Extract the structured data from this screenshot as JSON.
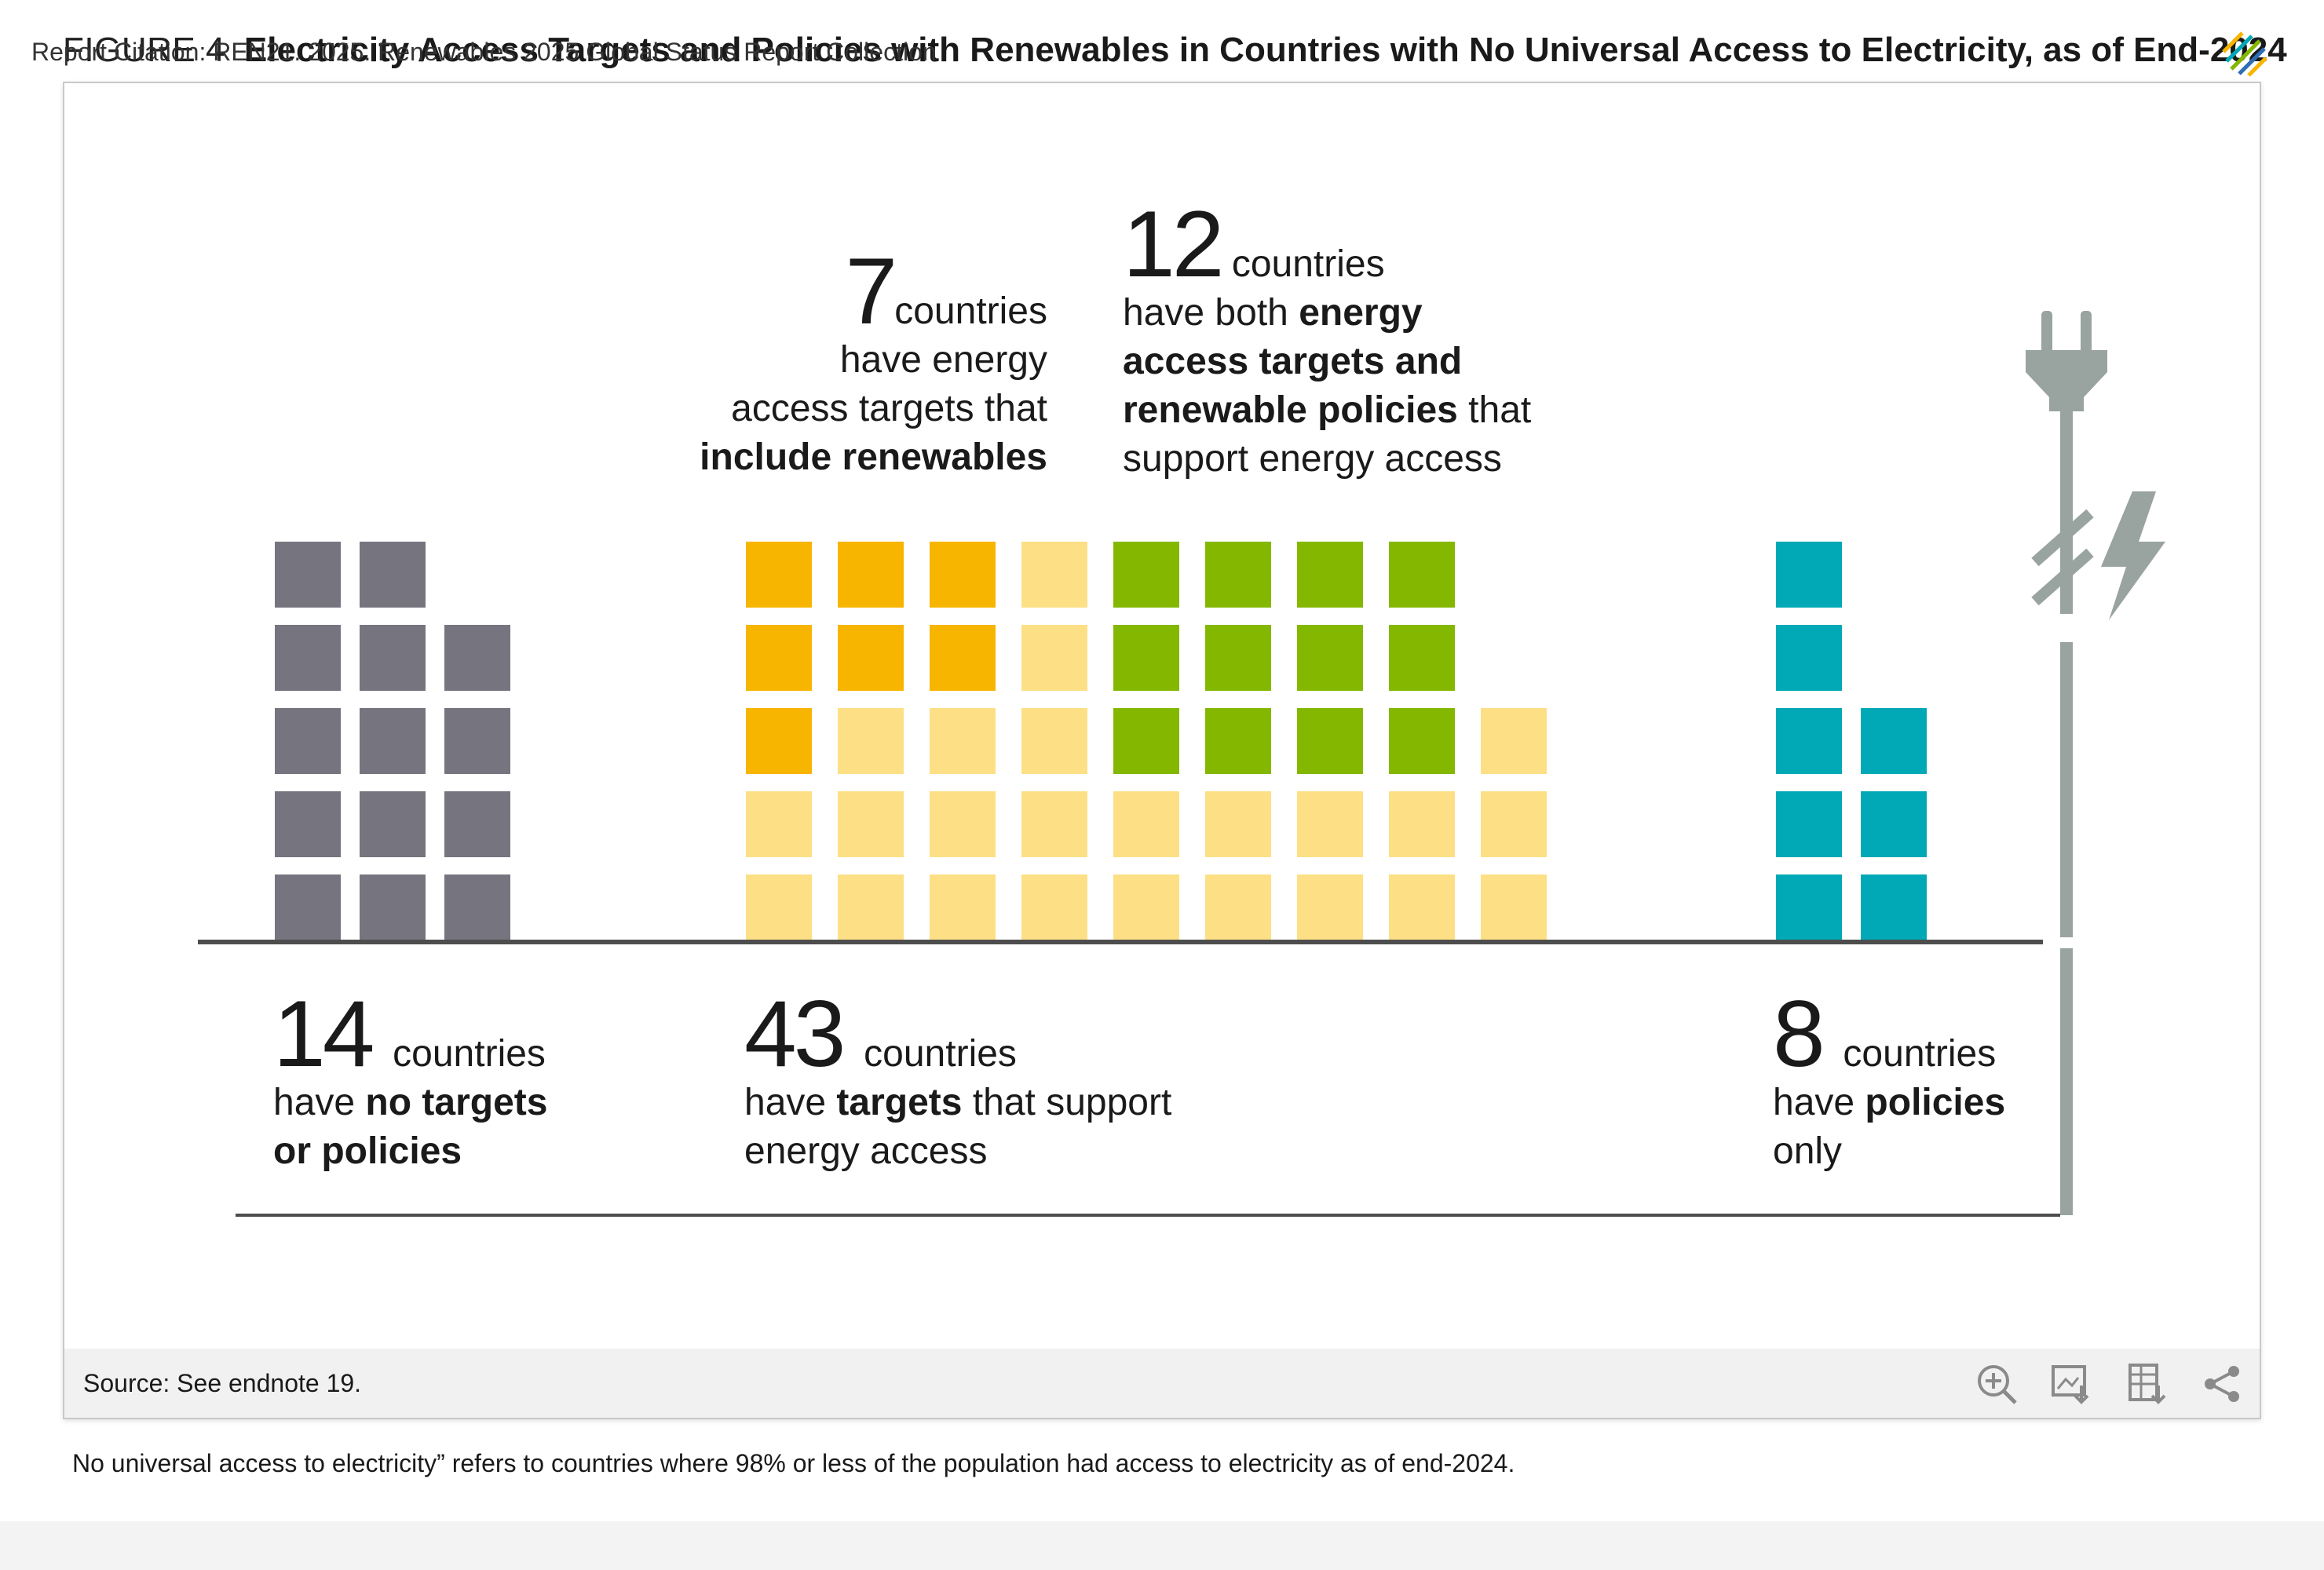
{
  "header": {
    "figure_label": "FIGURE 4",
    "title": "Electricity Access Targets and Policies with Renewables in Countries with No Universal Access to Electricity, as of End-2024"
  },
  "annotations": {
    "renew_targets": {
      "number": "7",
      "word": "countries",
      "line1": "have energy",
      "line2": "access targets that",
      "line3_bold": "include renewables"
    },
    "both": {
      "number": "12",
      "word": "countries",
      "line1_pre": "have both ",
      "line1_bold": "energy",
      "line2_bold": "access targets and",
      "line3_bold": "renewable policies",
      "line3_post": " that",
      "line4": "support energy access"
    },
    "none": {
      "number": "14",
      "word": "countries",
      "line1_pre": "have ",
      "line1_bold": "no targets",
      "line2_bold": "or policies"
    },
    "targets": {
      "number": "43",
      "word": "countries",
      "line1_pre": "have ",
      "line1_bold": "targets",
      "line1_post": " that support",
      "line2": "energy access"
    },
    "policies": {
      "number": "8",
      "word": "countries",
      "line1_pre": "have ",
      "line1_bold": "policies",
      "line2": "only"
    }
  },
  "footer": {
    "source": "Source: See endnote 19.",
    "tools": [
      "zoom-in-icon",
      "download-image-icon",
      "download-data-icon",
      "share-icon"
    ]
  },
  "note": "No universal access to electricity” refers to countries where 98% or less of the population had access to electricity as of end-2024.",
  "citation": "Report Citation: REN21. 2025. Renewables 2025 Global Status Report Collection",
  "colors": {
    "none": "#76757f",
    "targets_include_renewables": "#f7b500",
    "targets_other": "#fde085",
    "both": "#84b800",
    "policies_only": "#00a9b5",
    "plug": "#99a39f",
    "baseline": "#4d4d4d"
  },
  "chart_data": {
    "type": "pictogram",
    "unit": "countries",
    "categories": [
      "No targets or policies",
      "Targets that support energy access",
      "Policies only"
    ],
    "values": [
      14,
      43,
      8
    ],
    "sub_groups": [
      {
        "name": "Energy access targets that include renewables",
        "value": 7
      },
      {
        "name": "Both energy access targets and renewable policies",
        "value": 12
      }
    ],
    "columns": [
      {
        "group": "none",
        "cells": [
          "none",
          "none",
          "none",
          "none",
          "none"
        ]
      },
      {
        "group": "none",
        "cells": [
          "none",
          "none",
          "none",
          "none",
          "none"
        ]
      },
      {
        "group": "none",
        "cells": [
          "none",
          "none",
          "none",
          "none"
        ]
      },
      {
        "group": "targets",
        "cells": [
          "targets_other",
          "targets_other",
          "include_renewables",
          "include_renewables",
          "include_renewables"
        ]
      },
      {
        "group": "targets",
        "cells": [
          "targets_other",
          "targets_other",
          "targets_other",
          "include_renewables",
          "include_renewables"
        ]
      },
      {
        "group": "targets",
        "cells": [
          "targets_other",
          "targets_other",
          "targets_other",
          "include_renewables",
          "include_renewables"
        ]
      },
      {
        "group": "targets",
        "cells": [
          "targets_other",
          "targets_other",
          "targets_other",
          "targets_other",
          "targets_other"
        ]
      },
      {
        "group": "targets",
        "cells": [
          "targets_other",
          "targets_other",
          "both",
          "both",
          "both"
        ]
      },
      {
        "group": "targets",
        "cells": [
          "targets_other",
          "targets_other",
          "both",
          "both",
          "both"
        ]
      },
      {
        "group": "targets",
        "cells": [
          "targets_other",
          "targets_other",
          "both",
          "both",
          "both"
        ]
      },
      {
        "group": "targets",
        "cells": [
          "targets_other",
          "targets_other",
          "both",
          "both",
          "both"
        ]
      },
      {
        "group": "targets",
        "cells": [
          "targets_other",
          "targets_other",
          "targets_other"
        ]
      },
      {
        "group": "policies",
        "cells": [
          "policies_only",
          "policies_only",
          "policies_only",
          "policies_only",
          "policies_only"
        ]
      },
      {
        "group": "policies",
        "cells": [
          "policies_only",
          "policies_only",
          "policies_only"
        ]
      }
    ]
  }
}
